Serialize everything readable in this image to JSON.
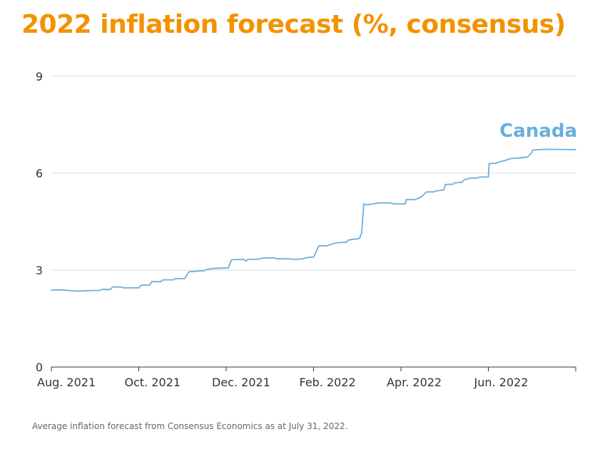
{
  "title": "2022 inflation forecast (%, consensus)",
  "footnote": "Average inflation forecast from Consensus Economics as at July 31, 2022.",
  "colors": {
    "title": "#f39200",
    "series": "#6aaedd",
    "grid": "#dddddd",
    "axis": "#333333"
  },
  "chart_data": {
    "type": "line",
    "title": "2022 inflation forecast (%, consensus)",
    "xlabel": "",
    "ylabel": "",
    "ylim": [
      0,
      9
    ],
    "yticks": [
      0,
      3,
      6,
      9
    ],
    "x_domain": [
      0,
      12
    ],
    "xticks": [
      {
        "pos": 0,
        "label": "Aug. 2021"
      },
      {
        "pos": 2,
        "label": "Oct. 2021"
      },
      {
        "pos": 4,
        "label": "Dec. 2021"
      },
      {
        "pos": 6,
        "label": "Feb. 2022"
      },
      {
        "pos": 8,
        "label": "Apr. 2022"
      },
      {
        "pos": 10,
        "label": "Jun. 2022"
      }
    ],
    "grid": "horizontal",
    "series": [
      {
        "name": "Canada",
        "points": [
          [
            0.0,
            2.38
          ],
          [
            0.2,
            2.39
          ],
          [
            0.4,
            2.37
          ],
          [
            0.6,
            2.35
          ],
          [
            0.75,
            2.36
          ],
          [
            1.0,
            2.37
          ],
          [
            1.1,
            2.37
          ],
          [
            1.15,
            2.4
          ],
          [
            1.35,
            2.4
          ],
          [
            1.4,
            2.48
          ],
          [
            1.6,
            2.48
          ],
          [
            1.65,
            2.45
          ],
          [
            2.0,
            2.45
          ],
          [
            2.05,
            2.53
          ],
          [
            2.25,
            2.54
          ],
          [
            2.3,
            2.65
          ],
          [
            2.5,
            2.64
          ],
          [
            2.55,
            2.7
          ],
          [
            2.8,
            2.7
          ],
          [
            2.82,
            2.73
          ],
          [
            3.05,
            2.74
          ],
          [
            3.15,
            2.95
          ],
          [
            3.35,
            2.97
          ],
          [
            3.5,
            2.98
          ],
          [
            3.55,
            3.02
          ],
          [
            3.7,
            3.05
          ],
          [
            3.85,
            3.06
          ],
          [
            4.05,
            3.07
          ],
          [
            4.12,
            3.32
          ],
          [
            4.3,
            3.33
          ],
          [
            4.4,
            3.33
          ],
          [
            4.45,
            3.28
          ],
          [
            4.5,
            3.33
          ],
          [
            4.75,
            3.34
          ],
          [
            4.82,
            3.37
          ],
          [
            5.1,
            3.38
          ],
          [
            5.15,
            3.35
          ],
          [
            5.4,
            3.35
          ],
          [
            5.6,
            3.33
          ],
          [
            5.75,
            3.35
          ],
          [
            5.9,
            3.4
          ],
          [
            6.0,
            3.4
          ],
          [
            6.05,
            3.55
          ],
          [
            6.12,
            3.75
          ],
          [
            6.3,
            3.75
          ],
          [
            6.45,
            3.82
          ],
          [
            6.55,
            3.85
          ],
          [
            6.75,
            3.86
          ],
          [
            6.8,
            3.93
          ],
          [
            6.9,
            3.95
          ],
          [
            7.05,
            3.98
          ],
          [
            7.1,
            4.15
          ],
          [
            7.15,
            5.05
          ],
          [
            7.25,
            5.02
          ],
          [
            7.35,
            5.05
          ],
          [
            7.5,
            5.08
          ],
          [
            7.75,
            5.08
          ],
          [
            7.85,
            5.05
          ],
          [
            8.1,
            5.05
          ],
          [
            8.12,
            5.18
          ],
          [
            8.3,
            5.18
          ],
          [
            8.4,
            5.22
          ],
          [
            8.5,
            5.3
          ],
          [
            8.58,
            5.42
          ],
          [
            8.75,
            5.42
          ],
          [
            8.8,
            5.45
          ],
          [
            8.98,
            5.48
          ],
          [
            9.02,
            5.65
          ],
          [
            9.2,
            5.66
          ],
          [
            9.22,
            5.7
          ],
          [
            9.4,
            5.72
          ],
          [
            9.45,
            5.8
          ],
          [
            9.6,
            5.85
          ],
          [
            9.75,
            5.85
          ],
          [
            9.8,
            5.88
          ],
          [
            10.0,
            5.88
          ],
          [
            10.02,
            6.3
          ],
          [
            10.15,
            6.3
          ],
          [
            10.25,
            6.35
          ],
          [
            10.4,
            6.4
          ],
          [
            10.5,
            6.45
          ],
          [
            10.7,
            6.47
          ],
          [
            10.9,
            6.5
          ],
          [
            10.98,
            6.62
          ],
          [
            11.02,
            6.72
          ],
          [
            11.3,
            6.74
          ],
          [
            12.0,
            6.73
          ]
        ]
      }
    ]
  }
}
